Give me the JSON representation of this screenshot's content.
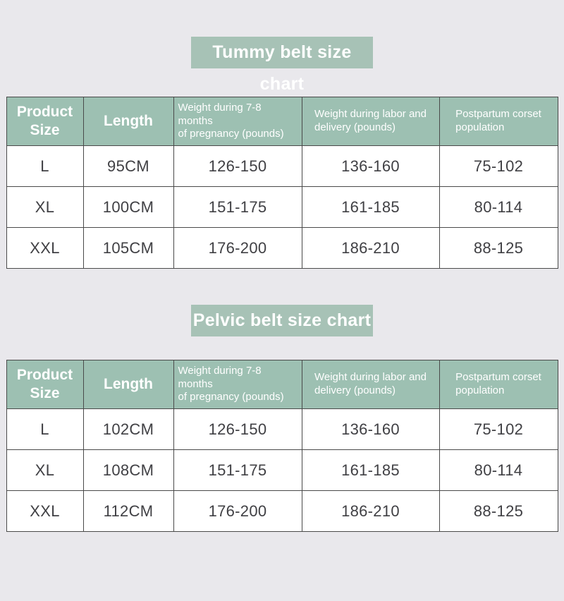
{
  "page": {
    "background": "#e9e8ec"
  },
  "colors": {
    "banner_bg": "#a7c2b6",
    "table_header_bg": "#9dc0b2",
    "header_text": "#ffffff",
    "cell_text": "#404044",
    "border": "#4a4a4a",
    "row_bg": "#ffffff"
  },
  "tables": [
    {
      "title": "Tummy belt size chart",
      "headers": [
        {
          "lines": [
            "Product",
            "Size"
          ]
        },
        {
          "lines": [
            "Length"
          ]
        },
        {
          "lines": [
            "Weight during 7-8 months",
            "of pregnancy (pounds)"
          ]
        },
        {
          "lines": [
            "Weight during labor and",
            "delivery (pounds)"
          ]
        },
        {
          "lines": [
            "Postpartum corset",
            "population"
          ]
        }
      ],
      "rows": [
        {
          "cells": [
            "L",
            "95CM",
            "126-150",
            "136-160",
            "75-102"
          ]
        },
        {
          "cells": [
            "XL",
            "100CM",
            "151-175",
            "161-185",
            "80-114"
          ]
        },
        {
          "cells": [
            "XXL",
            "105CM",
            "176-200",
            "186-210",
            "88-125"
          ]
        }
      ]
    },
    {
      "title": "Pelvic belt size chart",
      "headers": [
        {
          "lines": [
            "Product",
            "Size"
          ]
        },
        {
          "lines": [
            "Length"
          ]
        },
        {
          "lines": [
            "Weight during 7-8 months",
            "of pregnancy (pounds)"
          ]
        },
        {
          "lines": [
            "Weight during labor and",
            "delivery (pounds)"
          ]
        },
        {
          "lines": [
            "Postpartum corset",
            "population"
          ]
        }
      ],
      "rows": [
        {
          "cells": [
            "L",
            "102CM",
            "126-150",
            "136-160",
            "75-102"
          ]
        },
        {
          "cells": [
            "XL",
            "108CM",
            "151-175",
            "161-185",
            "80-114"
          ]
        },
        {
          "cells": [
            "XXL",
            "112CM",
            "176-200",
            "186-210",
            "88-125"
          ]
        }
      ]
    }
  ]
}
